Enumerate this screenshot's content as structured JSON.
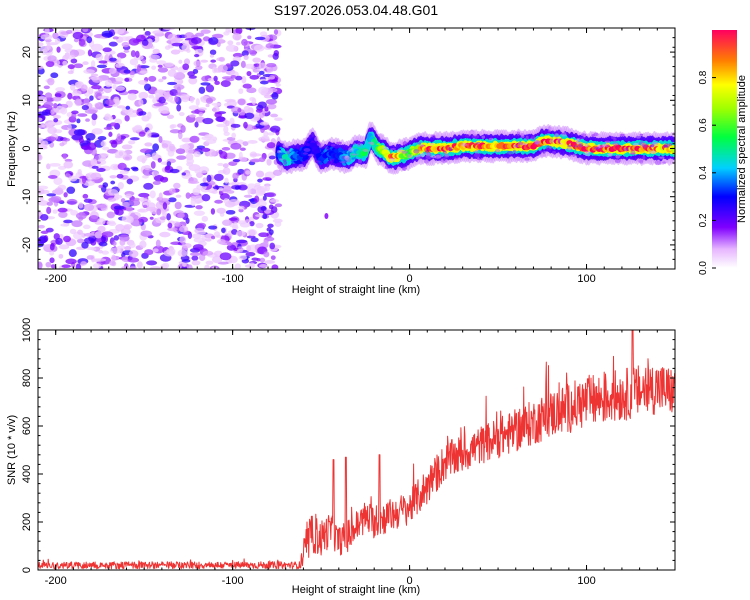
{
  "title": "S197.2026.053.04.48.G01",
  "chart_data": [
    {
      "type": "heatmap",
      "name": "spectrogram",
      "xlabel": "Height of straight line (km)",
      "ylabel": "Frequency (Hz)",
      "xlim": [
        -210,
        150
      ],
      "ylim": [
        -25,
        25
      ],
      "xticks": [
        -200,
        -100,
        0,
        100
      ],
      "yticks": [
        -20,
        -10,
        0,
        10,
        20
      ],
      "xtick_labels": [
        "-200",
        "-100",
        "0",
        "100"
      ],
      "ytick_labels": [
        "-20",
        "-10",
        "0",
        "10",
        "20"
      ],
      "noise_region_x": [
        -210,
        -74
      ],
      "signal_start_x": -74,
      "ridge": {
        "x": [
          -74,
          -70,
          -65,
          -60,
          -55,
          -50,
          -45,
          -40,
          -35,
          -30,
          -25,
          -22,
          -18,
          -15,
          -12,
          -10,
          -5,
          0,
          5,
          10,
          20,
          30,
          40,
          50,
          60,
          70,
          75,
          80,
          90,
          100,
          110,
          120,
          130,
          140,
          150
        ],
        "y": [
          -1,
          -2,
          -1.5,
          -1.5,
          1,
          -2,
          -1,
          -1.5,
          -2,
          -0.5,
          -1,
          2.5,
          0,
          -0.5,
          -1.5,
          -2,
          -1.5,
          -1,
          0,
          0,
          0,
          0.5,
          0.5,
          0.5,
          0.5,
          0.5,
          1.5,
          1.5,
          1,
          0,
          0,
          0,
          0,
          0,
          0
        ],
        "amp": [
          0.3,
          0.5,
          0.35,
          0.3,
          0.25,
          0.3,
          0.35,
          0.3,
          0.4,
          0.45,
          0.5,
          0.45,
          0.55,
          0.65,
          0.8,
          0.9,
          0.7,
          0.6,
          0.75,
          0.9,
          0.9,
          0.85,
          0.9,
          0.9,
          0.9,
          0.9,
          0.95,
          0.9,
          0.85,
          0.9,
          0.95,
          0.95,
          0.9,
          0.85,
          0.8
        ]
      },
      "colorbar": {
        "label": "Normalized spectral amplitude",
        "range": [
          0,
          1
        ],
        "ticks": [
          0.0,
          0.2,
          0.4,
          0.6,
          0.8
        ],
        "tick_labels": [
          "0.0",
          "0.2",
          "0.4",
          "0.6",
          "0.8"
        ]
      }
    },
    {
      "type": "line",
      "name": "snr",
      "xlabel": "Height of straight line (km)",
      "ylabel": "SNR (10 * v/v)",
      "xlim": [
        -210,
        150
      ],
      "ylim": [
        0,
        1000
      ],
      "xticks": [
        -200,
        -100,
        0,
        100
      ],
      "yticks": [
        0,
        200,
        400,
        600,
        800,
        1000
      ],
      "xtick_labels": [
        "-200",
        "-100",
        "0",
        "100"
      ],
      "ytick_labels": [
        "0",
        "200",
        "400",
        "600",
        "800",
        "1000"
      ],
      "series": [
        {
          "name": "SNR",
          "color": "#ee3333",
          "trend_x": [
            -210,
            -62,
            -60,
            -55,
            -50,
            -45,
            -40,
            -35,
            -30,
            -25,
            -20,
            -10,
            0,
            10,
            20,
            40,
            60,
            80,
            100,
            120,
            140,
            150
          ],
          "trend_y": [
            20,
            20,
            60,
            150,
            130,
            170,
            120,
            140,
            180,
            220,
            200,
            230,
            260,
            350,
            450,
            520,
            580,
            650,
            700,
            730,
            760,
            740
          ],
          "noise": [
            15,
            15,
            70,
            80,
            80,
            70,
            60,
            70,
            70,
            70,
            70,
            70,
            70,
            80,
            80,
            80,
            90,
            100,
            110,
            110,
            110,
            100
          ],
          "spikes": [
            {
              "x": -43,
              "y": 460
            },
            {
              "x": -36,
              "y": 470
            },
            {
              "x": -17,
              "y": 480
            },
            {
              "x": 126,
              "y": 1010
            }
          ]
        }
      ]
    }
  ],
  "colors": {
    "line": "#ee3333",
    "axes": "#000000"
  }
}
